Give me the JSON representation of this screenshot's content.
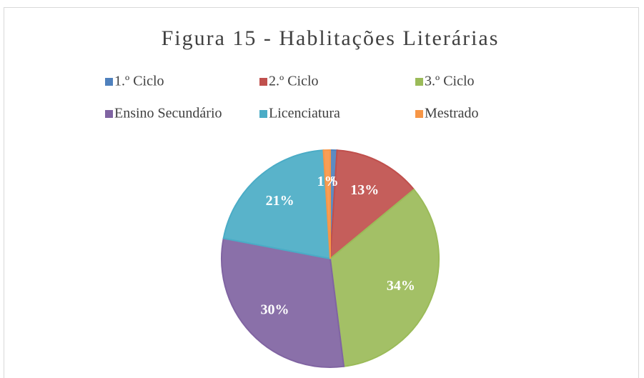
{
  "chart_data": {
    "type": "pie",
    "title": "Figura 15 - Hablitações Literárias",
    "categories": [
      "1.º Ciclo",
      "2.º Ciclo",
      "3.º Ciclo",
      "Ensino Secundário",
      "Licenciatura",
      "Mestrado"
    ],
    "values": [
      1,
      13,
      34,
      30,
      21,
      1
    ],
    "value_labels": [
      "1%",
      "13%",
      "34%",
      "30%",
      "21%",
      "1%"
    ],
    "colors": [
      "#4f81bd",
      "#c0504d",
      "#9bbb59",
      "#8064a2",
      "#4bacc6",
      "#f79646"
    ],
    "legend": "top"
  }
}
